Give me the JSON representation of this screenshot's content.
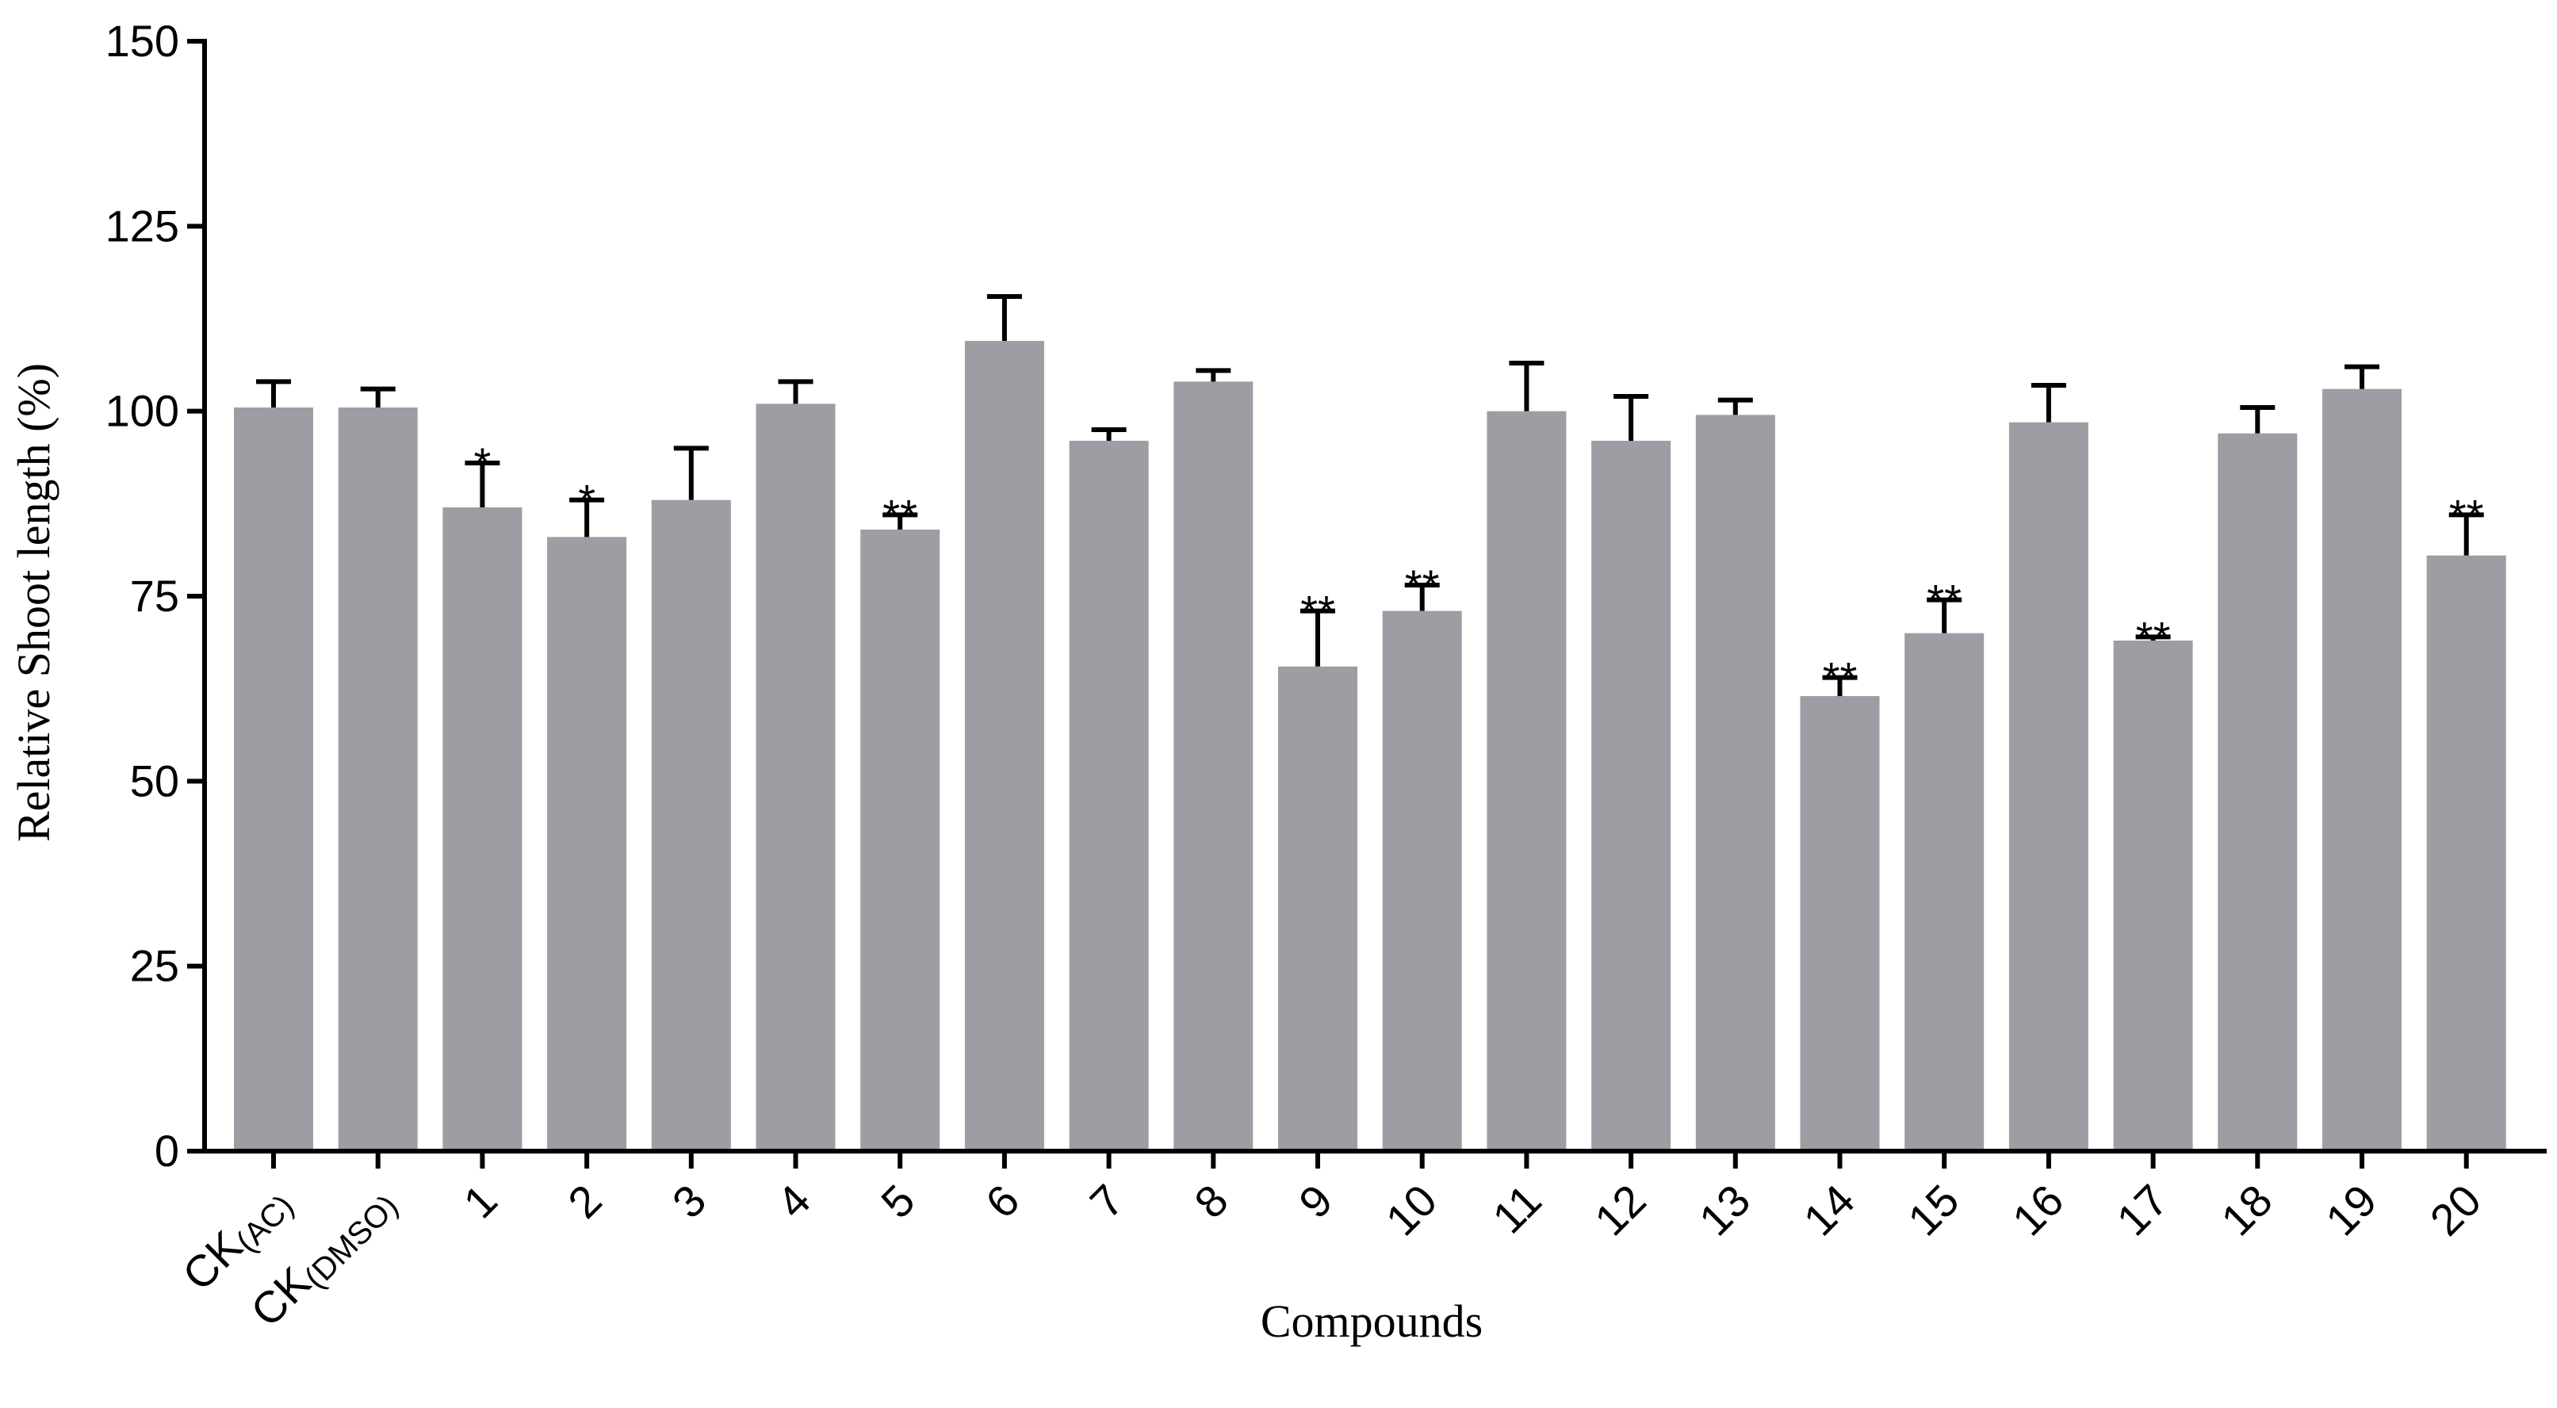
{
  "chart_data": {
    "type": "bar",
    "title": "",
    "xlabel": "Compounds",
    "ylabel": "Relative Shoot length (%)",
    "ylim": [
      0,
      150
    ],
    "yticks": [
      0,
      25,
      50,
      75,
      100,
      125,
      150
    ],
    "grid": false,
    "legend": "none",
    "bar_color": "#9e9da4",
    "categories": [
      {
        "main": "CK",
        "sub": "(AC)"
      },
      {
        "main": "CK",
        "sub": "(DMSO)"
      },
      {
        "main": "1",
        "sub": ""
      },
      {
        "main": "2",
        "sub": ""
      },
      {
        "main": "3",
        "sub": ""
      },
      {
        "main": "4",
        "sub": ""
      },
      {
        "main": "5",
        "sub": ""
      },
      {
        "main": "6",
        "sub": ""
      },
      {
        "main": "7",
        "sub": ""
      },
      {
        "main": "8",
        "sub": ""
      },
      {
        "main": "9",
        "sub": ""
      },
      {
        "main": "10",
        "sub": ""
      },
      {
        "main": "11",
        "sub": ""
      },
      {
        "main": "12",
        "sub": ""
      },
      {
        "main": "13",
        "sub": ""
      },
      {
        "main": "14",
        "sub": ""
      },
      {
        "main": "15",
        "sub": ""
      },
      {
        "main": "16",
        "sub": ""
      },
      {
        "main": "17",
        "sub": ""
      },
      {
        "main": "18",
        "sub": ""
      },
      {
        "main": "19",
        "sub": ""
      },
      {
        "main": "20",
        "sub": ""
      }
    ],
    "values": [
      100.5,
      100.5,
      87,
      83,
      88,
      101,
      84,
      109.5,
      96,
      104,
      65.5,
      73,
      100,
      96,
      99.5,
      61.5,
      70,
      98.5,
      69,
      97,
      103,
      80.5
    ],
    "errors": [
      3.5,
      2.5,
      6,
      5,
      7,
      3,
      2,
      6,
      1.5,
      1.5,
      7.5,
      3.5,
      6.5,
      6,
      2,
      2.5,
      4.5,
      5,
      0.5,
      3.5,
      3,
      5.5
    ],
    "significance": [
      "",
      "",
      "*",
      "*",
      "",
      "",
      "**",
      "",
      "",
      "",
      "**",
      "**",
      "",
      "",
      "",
      "**",
      "**",
      "",
      "**",
      "",
      "",
      "**"
    ]
  }
}
